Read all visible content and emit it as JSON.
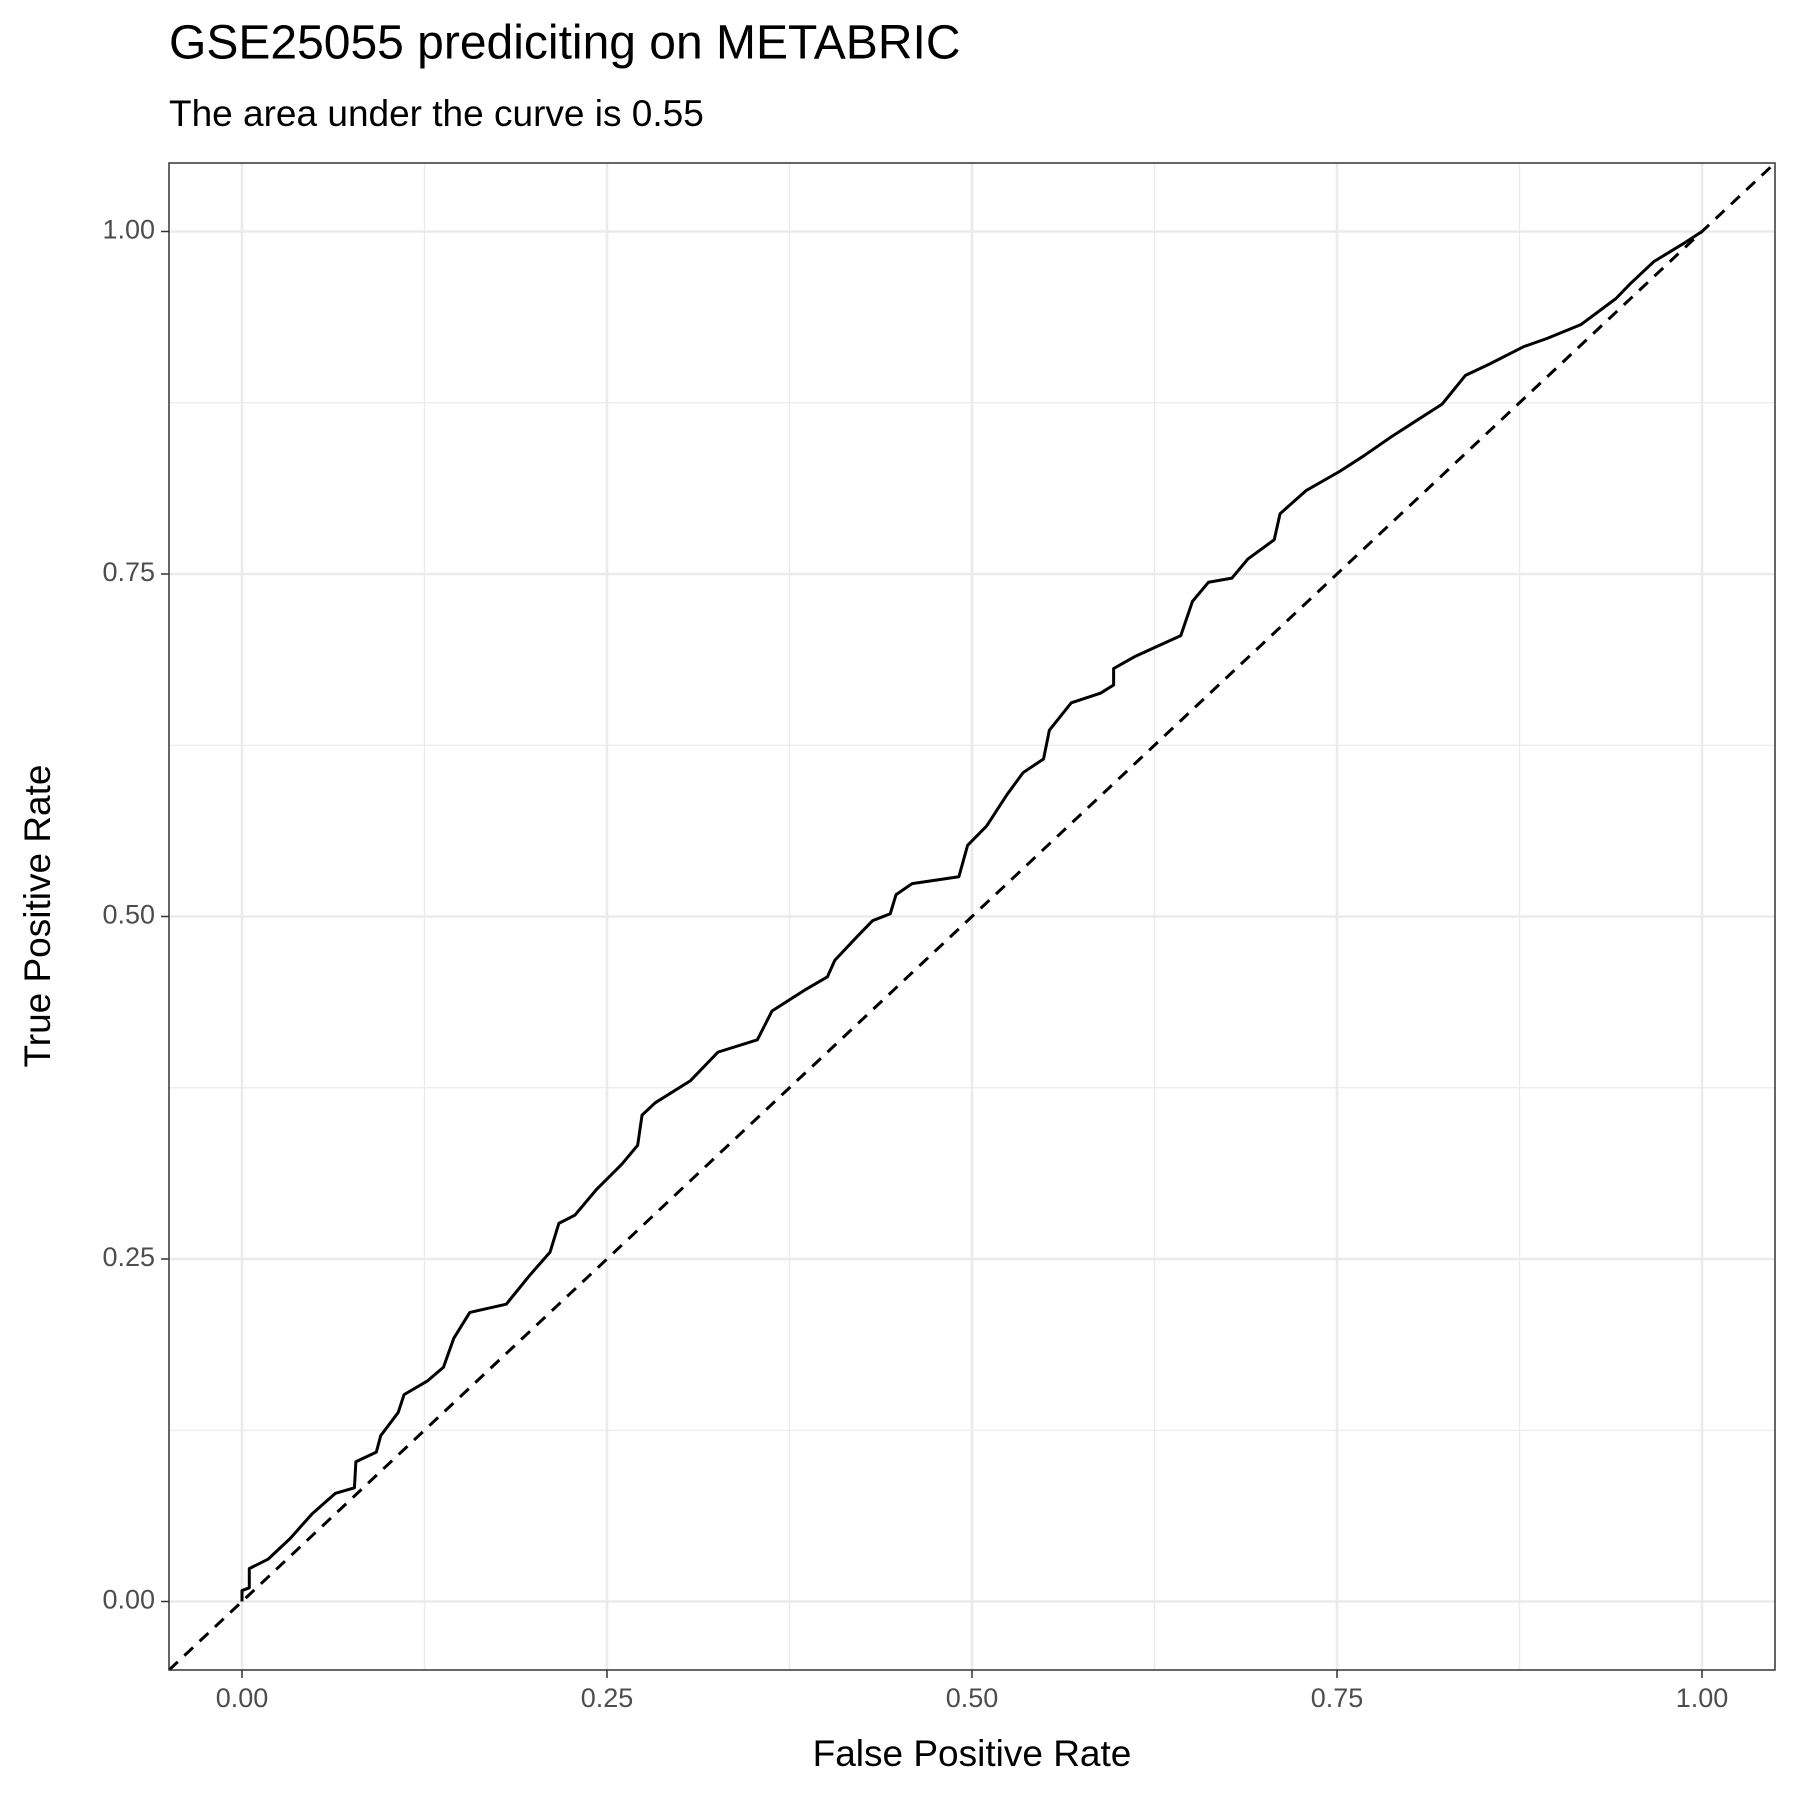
{
  "chart_data": {
    "type": "line",
    "title": "GSE25055 prediciting on METABRIC",
    "subtitle": "The area under the curve is 0.55",
    "x_label": "False Positive Rate",
    "y_label": "True Positive Rate",
    "xlim": [
      -0.05,
      1.05
    ],
    "ylim": [
      -0.05,
      1.05
    ],
    "xticks": [
      {
        "value": 0,
        "label": "0.00"
      },
      {
        "value": 0.25,
        "label": "0.25"
      },
      {
        "value": 0.5,
        "label": "0.50"
      },
      {
        "value": 0.75,
        "label": "0.75"
      },
      {
        "value": 1,
        "label": "1.00"
      }
    ],
    "yticks": [
      {
        "value": 0,
        "label": "0.00"
      },
      {
        "value": 0.25,
        "label": "0.25"
      },
      {
        "value": 0.5,
        "label": "0.50"
      },
      {
        "value": 0.75,
        "label": "0.75"
      },
      {
        "value": 1,
        "label": "1.00"
      }
    ],
    "grid": true,
    "minor_grid": true,
    "reference_line": {
      "slope": 1,
      "intercept": 0,
      "dash": true
    },
    "x": [
      0,
      0,
      0.005,
      0.005,
      0.018,
      0.033,
      0.048,
      0.064,
      0.077,
      0.078,
      0.092,
      0.095,
      0.107,
      0.111,
      0.127,
      0.138,
      0.145,
      0.156,
      0.181,
      0.197,
      0.211,
      0.217,
      0.228,
      0.243,
      0.26,
      0.271,
      0.274,
      0.283,
      0.307,
      0.326,
      0.353,
      0.363,
      0.385,
      0.401,
      0.406,
      0.421,
      0.432,
      0.444,
      0.448,
      0.459,
      0.491,
      0.497,
      0.51,
      0.524,
      0.535,
      0.549,
      0.553,
      0.568,
      0.588,
      0.597,
      0.597,
      0.612,
      0.643,
      0.651,
      0.662,
      0.678,
      0.689,
      0.707,
      0.711,
      0.729,
      0.752,
      0.768,
      0.787,
      0.803,
      0.822,
      0.838,
      0.854,
      0.878,
      0.894,
      0.917,
      0.941,
      0.951,
      0.967,
      0.987,
      1
    ],
    "series": [
      {
        "color": "#000000",
        "values": [
          0,
          0.008,
          0.01,
          0.024,
          0.031,
          0.046,
          0.064,
          0.079,
          0.083,
          0.102,
          0.109,
          0.121,
          0.138,
          0.151,
          0.161,
          0.171,
          0.192,
          0.211,
          0.217,
          0.238,
          0.255,
          0.276,
          0.282,
          0.301,
          0.319,
          0.333,
          0.355,
          0.364,
          0.38,
          0.401,
          0.41,
          0.431,
          0.446,
          0.456,
          0.468,
          0.485,
          0.497,
          0.502,
          0.516,
          0.524,
          0.529,
          0.552,
          0.566,
          0.589,
          0.605,
          0.615,
          0.636,
          0.656,
          0.663,
          0.669,
          0.681,
          0.69,
          0.705,
          0.73,
          0.744,
          0.747,
          0.761,
          0.775,
          0.794,
          0.811,
          0.825,
          0.836,
          0.85,
          0.861,
          0.874,
          0.895,
          0.903,
          0.916,
          0.922,
          0.932,
          0.951,
          0.962,
          0.978,
          0.991,
          1
        ]
      }
    ]
  }
}
